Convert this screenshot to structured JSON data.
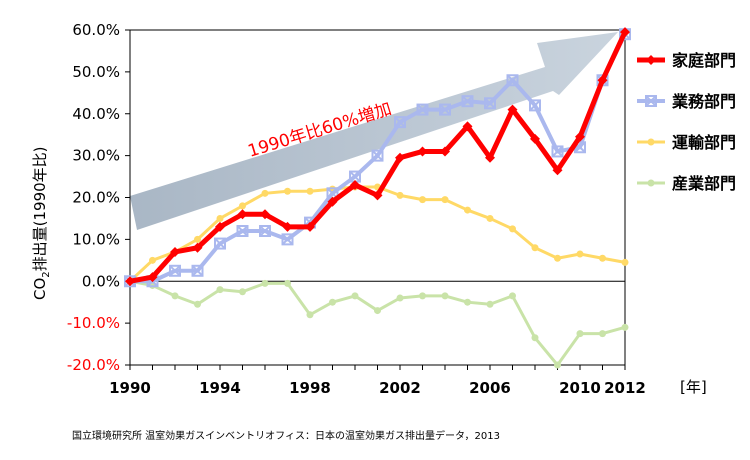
{
  "chart_data": {
    "type": "line",
    "ylabel_main": "CO",
    "ylabel_sub": "2",
    "ylabel_rest": "排出量(1990年比)",
    "xunit": "[年]",
    "annotation": "1990年比60%増加",
    "source": "国立環境研究所 温室効果ガスインベントリオフィス：日本の温室効果ガス排出量データ，2013",
    "ylim": [
      -20,
      60
    ],
    "xlim": [
      1990,
      2012
    ],
    "y_ticks": [
      {
        "value": 60,
        "label": "60.0%"
      },
      {
        "value": 50,
        "label": "50.0%"
      },
      {
        "value": 40,
        "label": "40.0%"
      },
      {
        "value": 30,
        "label": "30.0%"
      },
      {
        "value": 20,
        "label": "20.0%"
      },
      {
        "value": 10,
        "label": "10.0%"
      },
      {
        "value": 0,
        "label": "0.0%"
      },
      {
        "value": -10,
        "label": "-10.0%"
      },
      {
        "value": -20,
        "label": "-20.0%"
      }
    ],
    "x_ticks": [
      {
        "value": 1990,
        "label": "1990"
      },
      {
        "value": 1994,
        "label": "1994"
      },
      {
        "value": 1998,
        "label": "1998"
      },
      {
        "value": 2002,
        "label": "2002"
      },
      {
        "value": 2006,
        "label": "2006"
      },
      {
        "value": 2010,
        "label": "2010"
      },
      {
        "value": 2012,
        "label": "2012"
      }
    ],
    "x": [
      1990,
      1991,
      1992,
      1993,
      1994,
      1995,
      1996,
      1997,
      1998,
      1999,
      2000,
      2001,
      2002,
      2003,
      2004,
      2005,
      2006,
      2007,
      2008,
      2009,
      2010,
      2011,
      2012
    ],
    "series": [
      {
        "name": "家庭部門",
        "color": "#ff0000",
        "marker": "diamond",
        "width": 5,
        "values": [
          0,
          1,
          7,
          8,
          13,
          16,
          16,
          13,
          13,
          19,
          23,
          20.5,
          29.5,
          31,
          31,
          37,
          29.5,
          41,
          34,
          26.5,
          34.5,
          48,
          59.5
        ]
      },
      {
        "name": "業務部門",
        "color": "#aab8ee",
        "marker": "x-square",
        "width": 4,
        "values": [
          0,
          0,
          2.5,
          2.5,
          9,
          12,
          12,
          10,
          14,
          21,
          25,
          30,
          38,
          41,
          41,
          43,
          42.5,
          48,
          42,
          31,
          32,
          48,
          59
        ]
      },
      {
        "name": "運輸部門",
        "color": "#ffd966",
        "marker": "dot",
        "width": 3,
        "values": [
          0,
          5,
          7,
          10,
          15,
          18,
          21,
          21.5,
          21.5,
          22,
          22.5,
          22.5,
          20.5,
          19.5,
          19.5,
          17,
          15,
          12.5,
          8,
          5.5,
          6.5,
          5.5,
          4.5
        ]
      },
      {
        "name": "産業部門",
        "color": "#c9e3a8",
        "marker": "dot",
        "width": 3,
        "values": [
          0,
          -1,
          -3.5,
          -5.5,
          -2,
          -2.5,
          -0.5,
          -0.5,
          -8,
          -5,
          -3.5,
          -7,
          -4,
          -3.5,
          -3.5,
          -5,
          -5.5,
          -3.5,
          -13.5,
          -20,
          -12.5,
          -12.5,
          -11
        ]
      }
    ],
    "legend_position": "right",
    "grid": false
  }
}
